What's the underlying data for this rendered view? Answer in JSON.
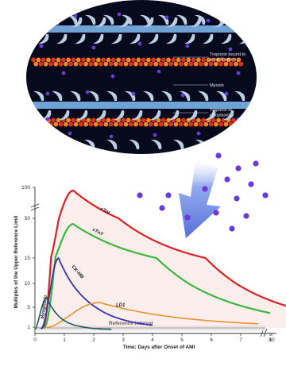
{
  "diagram": {
    "labels": {
      "troponin_bound": [
        "Troponin bound to",
        "actin filament"
      ],
      "myosin": "Myosin",
      "troponin_cytoplasm": [
        "Troponin in",
        "cytoplasm"
      ]
    }
  },
  "chart_data": {
    "type": "line",
    "xlabel": "Time: Days after Onset of AMI",
    "ylabel": "Multiples of the Upper Reference Limit",
    "x_ticks": [
      "0",
      "1",
      "2",
      "3",
      "4",
      "5",
      "6",
      "7",
      "8",
      "10"
    ],
    "y_ticks": [
      "1",
      "5",
      "10",
      "15",
      "50",
      "100"
    ],
    "annotation": "Reference interval",
    "series": [
      {
        "name": "cTnI",
        "color": "#e02020",
        "peak_day": 1.3,
        "peak_multiple": 95
      },
      {
        "name": "cTnT",
        "color": "#3ab83a",
        "peak_day": 1.3,
        "peak_multiple": 45
      },
      {
        "name": "CK-MB",
        "color": "#3333b0",
        "peak_day": 0.8,
        "peak_multiple": 15
      },
      {
        "name": "LD1",
        "color": "#f08a24",
        "peak_day": 2.2,
        "peak_multiple": 6
      },
      {
        "name": "Myoglobin",
        "color": "#1e5a5a",
        "peak_day": 0.4,
        "peak_multiple": 7
      }
    ]
  },
  "colors": {
    "ellipse_bg": "#07091c",
    "filament": "#6fa3d6",
    "actin_red": "#e0301e",
    "actin_orange": "#f08a1c",
    "troponin_dot": "#6a3ad8",
    "arrow": "#5a7ce0"
  }
}
